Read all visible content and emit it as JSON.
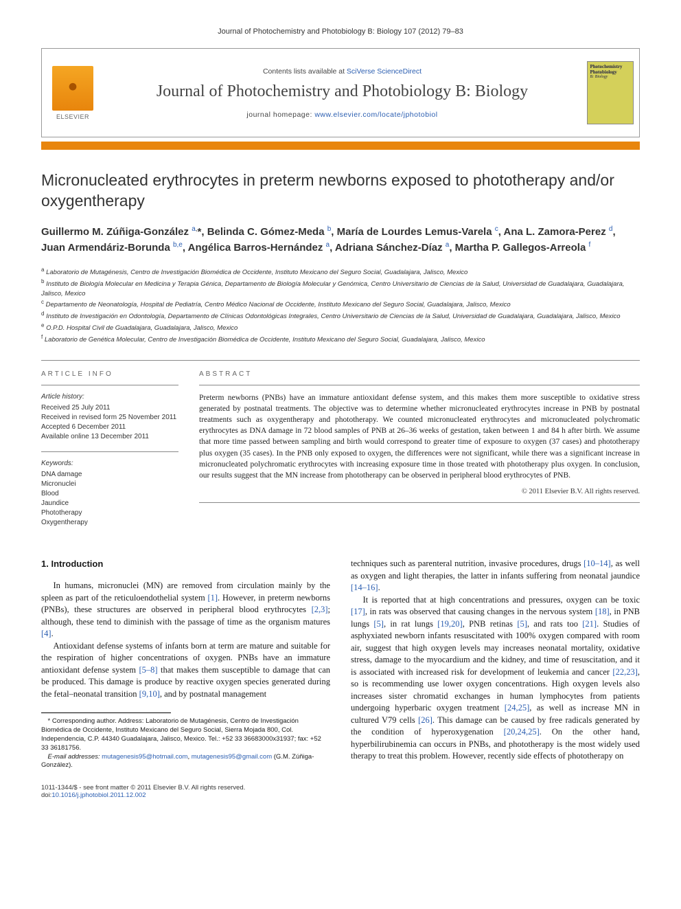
{
  "running_head": "Journal of Photochemistry and Photobiology B: Biology 107 (2012) 79–83",
  "masthead": {
    "publisher": "ELSEVIER",
    "contents_prefix": "Contents lists available at ",
    "contents_link": "SciVerse ScienceDirect",
    "journal_name": "Journal of Photochemistry and Photobiology B: Biology",
    "homepage_prefix": "journal homepage: ",
    "homepage_url": "www.elsevier.com/locate/jphotobiol",
    "cover_title": "Photochemistry Photobiology",
    "cover_sub": "B: Biology"
  },
  "article": {
    "title": "Micronucleated erythrocytes in preterm newborns exposed to phototherapy and/or oxygentherapy"
  },
  "authors_html": "Guillermo M. Zúñiga-González <sup><a href=\"#\">a</a>,</sup>*, Belinda C. Gómez-Meda <sup><a href=\"#\">b</a></sup>, María de Lourdes Lemus-Varela <sup><a href=\"#\">c</a></sup>, Ana L. Zamora-Perez <sup><a href=\"#\">d</a></sup>, Juan Armendáriz-Borunda <sup><a href=\"#\">b,e</a></sup>, Angélica Barros-Hernández <sup><a href=\"#\">a</a></sup>, Adriana Sánchez-Díaz <sup><a href=\"#\">a</a></sup>, Martha P. Gallegos-Arreola <sup><a href=\"#\">f</a></sup>",
  "affiliations": [
    {
      "sup": "a",
      "text": "Laboratorio de Mutagénesis, Centro de Investigación Biomédica de Occidente, Instituto Mexicano del Seguro Social, Guadalajara, Jalisco, Mexico"
    },
    {
      "sup": "b",
      "text": "Instituto de Biología Molecular en Medicina y Terapia Génica, Departamento de Biología Molecular y Genómica, Centro Universitario de Ciencias de la Salud, Universidad de Guadalajara, Guadalajara, Jalisco, Mexico"
    },
    {
      "sup": "c",
      "text": "Departamento de Neonatología, Hospital de Pediatría, Centro Médico Nacional de Occidente, Instituto Mexicano del Seguro Social, Guadalajara, Jalisco, Mexico"
    },
    {
      "sup": "d",
      "text": "Instituto de Investigación en Odontología, Departamento de Clínicas Odontológicas Integrales, Centro Universitario de Ciencias de la Salud, Universidad de Guadalajara, Guadalajara, Jalisco, Mexico"
    },
    {
      "sup": "e",
      "text": "O.P.D. Hospital Civil de Guadalajara, Guadalajara, Jalisco, Mexico"
    },
    {
      "sup": "f",
      "text": "Laboratorio de Genética Molecular, Centro de Investigación Biomédica de Occidente, Instituto Mexicano del Seguro Social, Guadalajara, Jalisco, Mexico"
    }
  ],
  "info": {
    "label_info": "ARTICLE INFO",
    "history_head": "Article history:",
    "history": [
      "Received 25 July 2011",
      "Received in revised form 25 November 2011",
      "Accepted 6 December 2011",
      "Available online 13 December 2011"
    ],
    "keywords_head": "Keywords:",
    "keywords": [
      "DNA damage",
      "Micronuclei",
      "Blood",
      "Jaundice",
      "Phototherapy",
      "Oxygentherapy"
    ]
  },
  "abstract": {
    "label": "ABSTRACT",
    "text": "Preterm newborns (PNBs) have an immature antioxidant defense system, and this makes them more susceptible to oxidative stress generated by postnatal treatments. The objective was to determine whether micronucleated erythrocytes increase in PNB by postnatal treatments such as oxygentherapy and phototherapy. We counted micronucleated erythrocytes and micronucleated polychromatic erythrocytes as DNA damage in 72 blood samples of PNB at 26–36 weeks of gestation, taken between 1 and 84 h after birth. We assume that more time passed between sampling and birth would correspond to greater time of exposure to oxygen (37 cases) and phototherapy plus oxygen (35 cases). In the PNB only exposed to oxygen, the differences were not significant, while there was a significant increase in micronucleated polychromatic erythrocytes with increasing exposure time in those treated with phototherapy plus oxygen. In conclusion, our results suggest that the MN increase from phototherapy can be observed in peripheral blood erythrocytes of PNB.",
    "copyright": "© 2011 Elsevier B.V. All rights reserved."
  },
  "body": {
    "section_title": "1. Introduction",
    "left_paras": [
      "In humans, micronuclei (MN) are removed from circulation mainly by the spleen as part of the reticuloendothelial system <a href=\"#\">[1]</a>. However, in preterm newborns (PNBs), these structures are observed in peripheral blood erythrocytes <a href=\"#\">[2,3]</a>; although, these tend to diminish with the passage of time as the organism matures <a href=\"#\">[4]</a>.",
      "Antioxidant defense systems of infants born at term are mature and suitable for the respiration of higher concentrations of oxygen. PNBs have an immature antioxidant defense system <a href=\"#\">[5–8]</a> that makes them susceptible to damage that can be produced. This damage is produce by reactive oxygen species generated during the fetal–neonatal transition <a href=\"#\">[9,10]</a>, and by postnatal management"
    ],
    "right_paras": [
      "techniques such as parenteral nutrition, invasive procedures, drugs <a href=\"#\">[10–14]</a>, as well as oxygen and light therapies, the latter in infants suffering from neonatal jaundice <a href=\"#\">[14–16]</a>.",
      "It is reported that at high concentrations and pressures, oxygen can be toxic <a href=\"#\">[17]</a>, in rats was observed that causing changes in the nervous system <a href=\"#\">[18]</a>, in PNB lungs <a href=\"#\">[5]</a>, in rat lungs <a href=\"#\">[19,20]</a>, PNB retinas <a href=\"#\">[5]</a>, and rats too <a href=\"#\">[21]</a>. Studies of asphyxiated newborn infants resuscitated with 100% oxygen compared with room air, suggest that high oxygen levels may increases neonatal mortality, oxidative stress, damage to the myocardium and the kidney, and time of resuscitation, and it is associated with increased risk for development of leukemia and cancer <a href=\"#\">[22,23]</a>, so is recommending use lower oxygen concentrations. High oxygen levels also increases sister chromatid exchanges in human lymphocytes from patients undergoing hyperbaric oxygen treatment <a href=\"#\">[24,25]</a>, as well as increase MN in cultured V79 cells <a href=\"#\">[26]</a>. This damage can be caused by free radicals generated by the condition of hyperoxygenation <a href=\"#\">[20,24,25]</a>. On the other hand, hyperbilirubinemia can occurs in PNBs, and phototherapy is the most widely used therapy to treat this problem. However, recently side effects of phototherapy on"
    ]
  },
  "footnotes": {
    "corr": "* Corresponding author. Address: Laboratorio de Mutagénesis, Centro de Investigación Biomédica de Occidente, Instituto Mexicano del Seguro Social, Sierra Mojada 800, Col. Independencia, C.P. 44340 Guadalajara, Jalisco, Mexico. Tel.: +52 33 36683000x31937; fax: +52 33 36181756.",
    "email_label": "E-mail addresses:",
    "emails": "<a href=\"#\">mutagenesis95@hotmail.com</a>, <a href=\"#\">mutagenesis95@gmail.com</a> (G.M. Zúñiga-González)."
  },
  "footer": {
    "left_line1": "1011-1344/$ - see front matter © 2011 Elsevier B.V. All rights reserved.",
    "left_line2": "doi:",
    "doi": "10.1016/j.jphotobiol.2011.12.002"
  },
  "colors": {
    "orange_bar": "#e8850c",
    "link": "#2a5db0",
    "cover": "#d4d05a"
  }
}
